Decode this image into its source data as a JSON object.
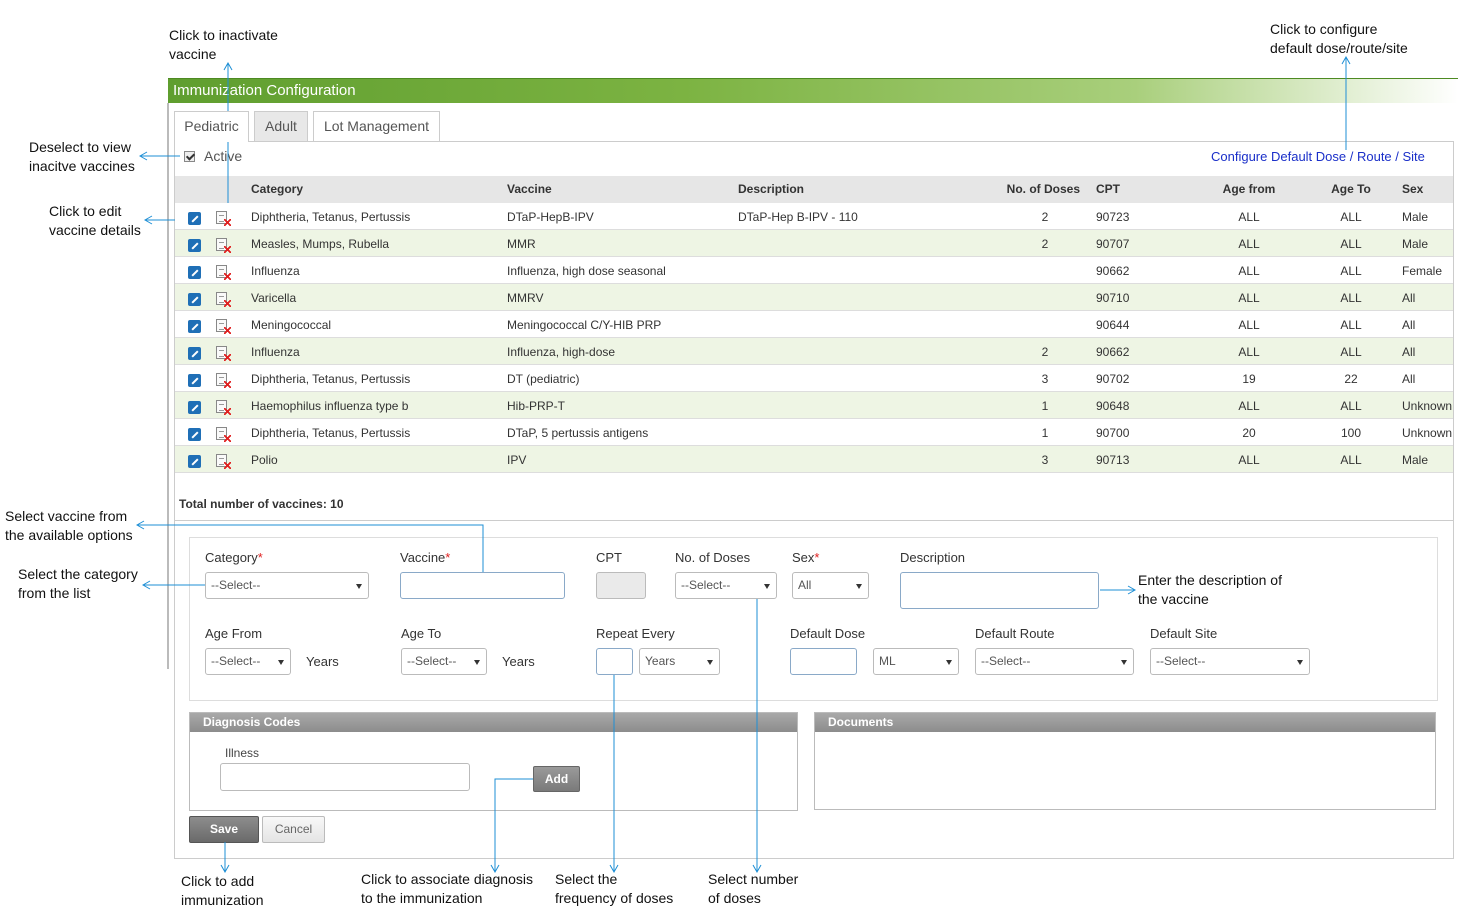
{
  "header": {
    "title": "Immunization Configuration"
  },
  "tabs": [
    "Pediatric",
    "Adult",
    "Lot Management"
  ],
  "active_label": "Active",
  "configure_link": "Configure Default Dose / Route / Site",
  "table": {
    "columns": [
      "Category",
      "Vaccine",
      "Description",
      "No. of Doses",
      "CPT",
      "Age from",
      "Age To",
      "Sex"
    ],
    "rows": [
      [
        "Diphtheria, Tetanus, Pertussis",
        "DTaP-HepB-IPV",
        "DTaP-Hep B-IPV - 110",
        2,
        90723,
        "ALL",
        "ALL",
        "Male"
      ],
      [
        "Measles, Mumps, Rubella",
        "MMR",
        null,
        2,
        90707,
        "ALL",
        "ALL",
        "Male"
      ],
      [
        "Influenza",
        "Influenza, high dose seasonal",
        null,
        null,
        90662,
        "ALL",
        "ALL",
        "Female"
      ],
      [
        "Varicella",
        "MMRV",
        null,
        null,
        90710,
        "ALL",
        "ALL",
        "All"
      ],
      [
        "Meningococcal",
        "Meningococcal C/Y-HIB PRP",
        null,
        null,
        90644,
        "ALL",
        "ALL",
        "All"
      ],
      [
        "Influenza",
        "Influenza, high-dose",
        null,
        2,
        90662,
        "ALL",
        "ALL",
        "All"
      ],
      [
        "Diphtheria, Tetanus, Pertussis",
        "DT (pediatric)",
        null,
        3,
        90702,
        19,
        22,
        "All"
      ],
      [
        "Haemophilus influenza type b",
        "Hib-PRP-T",
        null,
        1,
        90648,
        "ALL",
        "ALL",
        "Unknown"
      ],
      [
        "Diphtheria, Tetanus, Pertussis",
        "DTaP, 5 pertussis antigens",
        null,
        1,
        90700,
        20,
        100,
        "Unknown"
      ],
      [
        "Polio",
        "IPV",
        null,
        3,
        90713,
        "ALL",
        "ALL",
        "Male"
      ]
    ],
    "total": "Total number of vaccines: 10"
  },
  "form": {
    "category": {
      "label": "Category",
      "required_mark": "*",
      "value": "--Select--"
    },
    "vaccine": {
      "label": "Vaccine",
      "required_mark": "*"
    },
    "cpt": {
      "label": "CPT"
    },
    "no_of_doses": {
      "label": "No. of Doses",
      "value": "--Select--"
    },
    "sex": {
      "label": "Sex",
      "required_mark": "*",
      "value": "All"
    },
    "description": {
      "label": "Description"
    },
    "age_from": {
      "label": "Age From",
      "value": "--Select--",
      "unit": "Years"
    },
    "age_to": {
      "label": "Age To",
      "value": "--Select--",
      "unit": "Years"
    },
    "repeat_every": {
      "label": "Repeat Every",
      "unit": "Years"
    },
    "default_dose": {
      "label": "Default Dose",
      "unit": "ML"
    },
    "default_route": {
      "label": "Default Route",
      "value": "--Select--"
    },
    "default_site": {
      "label": "Default Site",
      "value": "--Select--"
    }
  },
  "diagnosis": {
    "title": "Diagnosis Codes",
    "illness_label": "Illness",
    "add_button": "Add"
  },
  "documents": {
    "title": "Documents"
  },
  "buttons": {
    "save": "Save",
    "cancel": "Cancel"
  },
  "annotations": [
    {
      "lines": [
        "Click to inactivate",
        "vaccine"
      ]
    },
    {
      "lines": [
        "Click to configure",
        "default dose/route/site"
      ]
    },
    {
      "lines": [
        "Deselect to view",
        "inacitve vaccines"
      ]
    },
    {
      "lines": [
        "Click to edit",
        "vaccine details"
      ]
    },
    {
      "lines": [
        "Select vaccine from",
        "the available options"
      ]
    },
    {
      "lines": [
        "Select the category",
        "from the list"
      ]
    },
    {
      "lines": [
        "Enter the description of",
        "the vaccine"
      ]
    },
    {
      "lines": [
        "Click to add",
        "immunization"
      ]
    },
    {
      "lines": [
        "Click to associate diagnosis",
        "to the immunization"
      ]
    },
    {
      "lines": [
        "Select the",
        "frequency of doses"
      ]
    },
    {
      "lines": [
        "Select number",
        "of doses"
      ]
    }
  ]
}
